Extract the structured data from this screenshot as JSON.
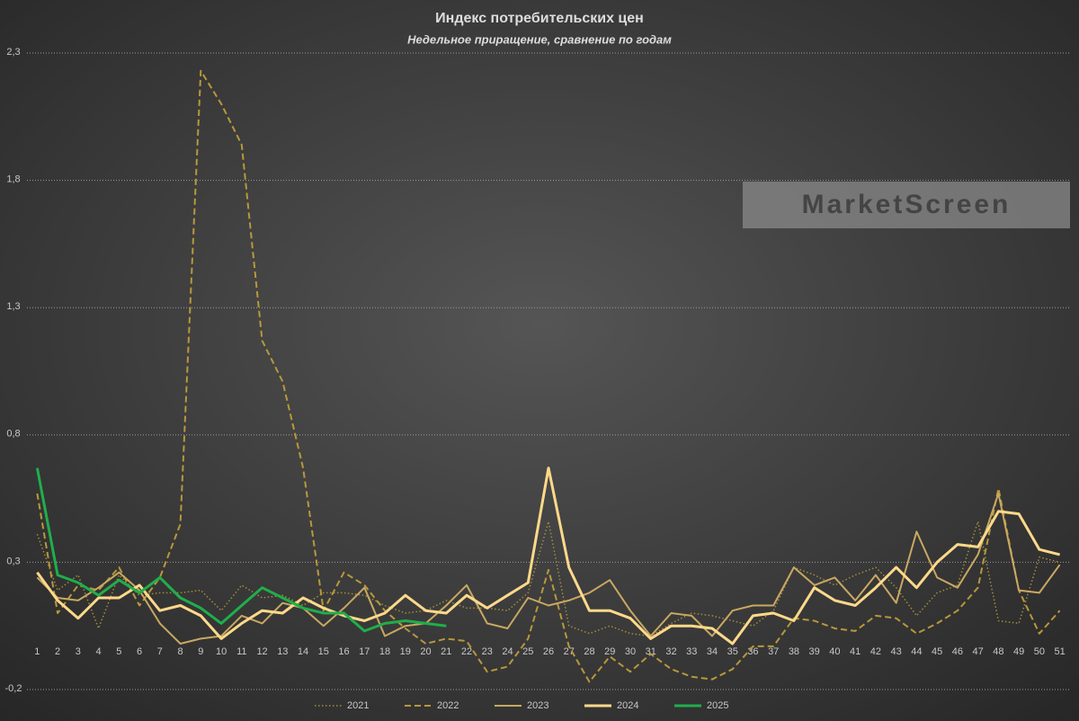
{
  "chart_data": {
    "type": "line",
    "title": "Индекс потребительских цен",
    "subtitle": "Недельное приращение, сравнение по годам",
    "watermark": "MarketScreen",
    "categories": [
      "1",
      "2",
      "3",
      "4",
      "5",
      "6",
      "7",
      "8",
      "9",
      "10",
      "11",
      "12",
      "13",
      "14",
      "15",
      "16",
      "17",
      "18",
      "19",
      "20",
      "21",
      "22",
      "23",
      "24",
      "25",
      "26",
      "27",
      "28",
      "29",
      "30",
      "31",
      "32",
      "33",
      "34",
      "35",
      "36",
      "37",
      "38",
      "39",
      "40",
      "41",
      "42",
      "43",
      "44",
      "45",
      "46",
      "47",
      "48",
      "49",
      "50",
      "51"
    ],
    "ylim": [
      -0.2,
      2.3
    ],
    "yticks": [
      {
        "value": -0.2,
        "label": "-0,2"
      },
      {
        "value": 0.3,
        "label": "0,3"
      },
      {
        "value": 0.8,
        "label": "0,8"
      },
      {
        "value": 1.3,
        "label": "1,3"
      },
      {
        "value": 1.8,
        "label": "1,8"
      },
      {
        "value": 2.3,
        "label": "2,3"
      }
    ],
    "grid": true,
    "legend": "bottom",
    "series": [
      {
        "name": "2021",
        "color": "#a48d3c",
        "style": "dotted",
        "values": [
          0.41,
          0.19,
          0.25,
          0.04,
          0.25,
          0.17,
          0.18,
          0.18,
          0.19,
          0.11,
          0.21,
          0.16,
          0.17,
          0.13,
          0.18,
          0.18,
          0.17,
          0.13,
          0.1,
          0.11,
          0.15,
          0.12,
          0.12,
          0.11,
          0.18,
          0.46,
          0.05,
          0.02,
          0.05,
          0.02,
          0.01,
          0.06,
          0.1,
          0.09,
          0.07,
          0.05,
          0.11,
          0.28,
          0.25,
          0.21,
          0.25,
          0.28,
          0.2,
          0.09,
          0.18,
          0.21,
          0.46,
          0.07,
          0.06,
          0.32,
          0.3
        ]
      },
      {
        "name": "2022",
        "color": "#b8983a",
        "style": "dashed",
        "values": [
          0.57,
          0.1,
          0.21,
          0.19,
          0.28,
          0.13,
          0.24,
          0.45,
          2.23,
          2.1,
          1.94,
          1.17,
          1.01,
          0.67,
          0.11,
          0.26,
          0.21,
          0.11,
          0.04,
          -0.02,
          0.0,
          -0.01,
          -0.13,
          -0.11,
          0.0,
          0.27,
          -0.03,
          -0.17,
          -0.07,
          -0.13,
          -0.06,
          -0.12,
          -0.15,
          -0.16,
          -0.12,
          -0.03,
          -0.03,
          0.08,
          0.07,
          0.04,
          0.03,
          0.09,
          0.08,
          0.02,
          0.06,
          0.11,
          0.2,
          0.59,
          0.19,
          0.02,
          0.11
        ]
      },
      {
        "name": "2023",
        "color": "#c9a862",
        "style": "solid",
        "values": [
          0.24,
          0.16,
          0.15,
          0.2,
          0.26,
          0.19,
          0.06,
          -0.02,
          0.0,
          0.01,
          0.09,
          0.06,
          0.14,
          0.12,
          0.05,
          0.12,
          0.2,
          0.01,
          0.05,
          0.06,
          0.13,
          0.21,
          0.06,
          0.04,
          0.16,
          0.13,
          0.15,
          0.18,
          0.23,
          0.11,
          0.01,
          0.1,
          0.09,
          0.01,
          0.11,
          0.13,
          0.13,
          0.28,
          0.21,
          0.24,
          0.15,
          0.25,
          0.14,
          0.42,
          0.24,
          0.2,
          0.33,
          0.57,
          0.19,
          0.18,
          0.29
        ]
      },
      {
        "name": "2024",
        "color": "#ffd98a",
        "style": "thick",
        "values": [
          0.26,
          0.15,
          0.08,
          0.16,
          0.16,
          0.21,
          0.11,
          0.13,
          0.09,
          0.0,
          0.06,
          0.11,
          0.1,
          0.16,
          0.12,
          0.09,
          0.07,
          0.1,
          0.17,
          0.11,
          0.1,
          0.17,
          0.12,
          0.17,
          0.22,
          0.67,
          0.28,
          0.11,
          0.11,
          0.08,
          0.0,
          0.05,
          0.05,
          0.04,
          -0.02,
          0.09,
          0.1,
          0.07,
          0.2,
          0.15,
          0.13,
          0.2,
          0.28,
          0.2,
          0.3,
          0.37,
          0.36,
          0.5,
          0.49,
          0.35,
          0.33
        ]
      },
      {
        "name": "2025",
        "color": "#1fae4b",
        "style": "thick",
        "values": [
          0.67,
          0.25,
          0.22,
          0.17,
          0.23,
          0.18,
          0.24,
          0.16,
          0.12,
          0.06,
          0.13,
          0.2,
          0.16,
          0.12,
          0.1,
          0.1,
          0.03,
          0.06,
          0.07,
          0.06,
          0.05,
          null,
          null,
          null,
          null,
          null,
          null,
          null,
          null,
          null,
          null,
          null,
          null,
          null,
          null,
          null,
          null,
          null,
          null,
          null,
          null,
          null,
          null,
          null,
          null,
          null,
          null,
          null,
          null,
          null,
          null
        ]
      }
    ]
  }
}
